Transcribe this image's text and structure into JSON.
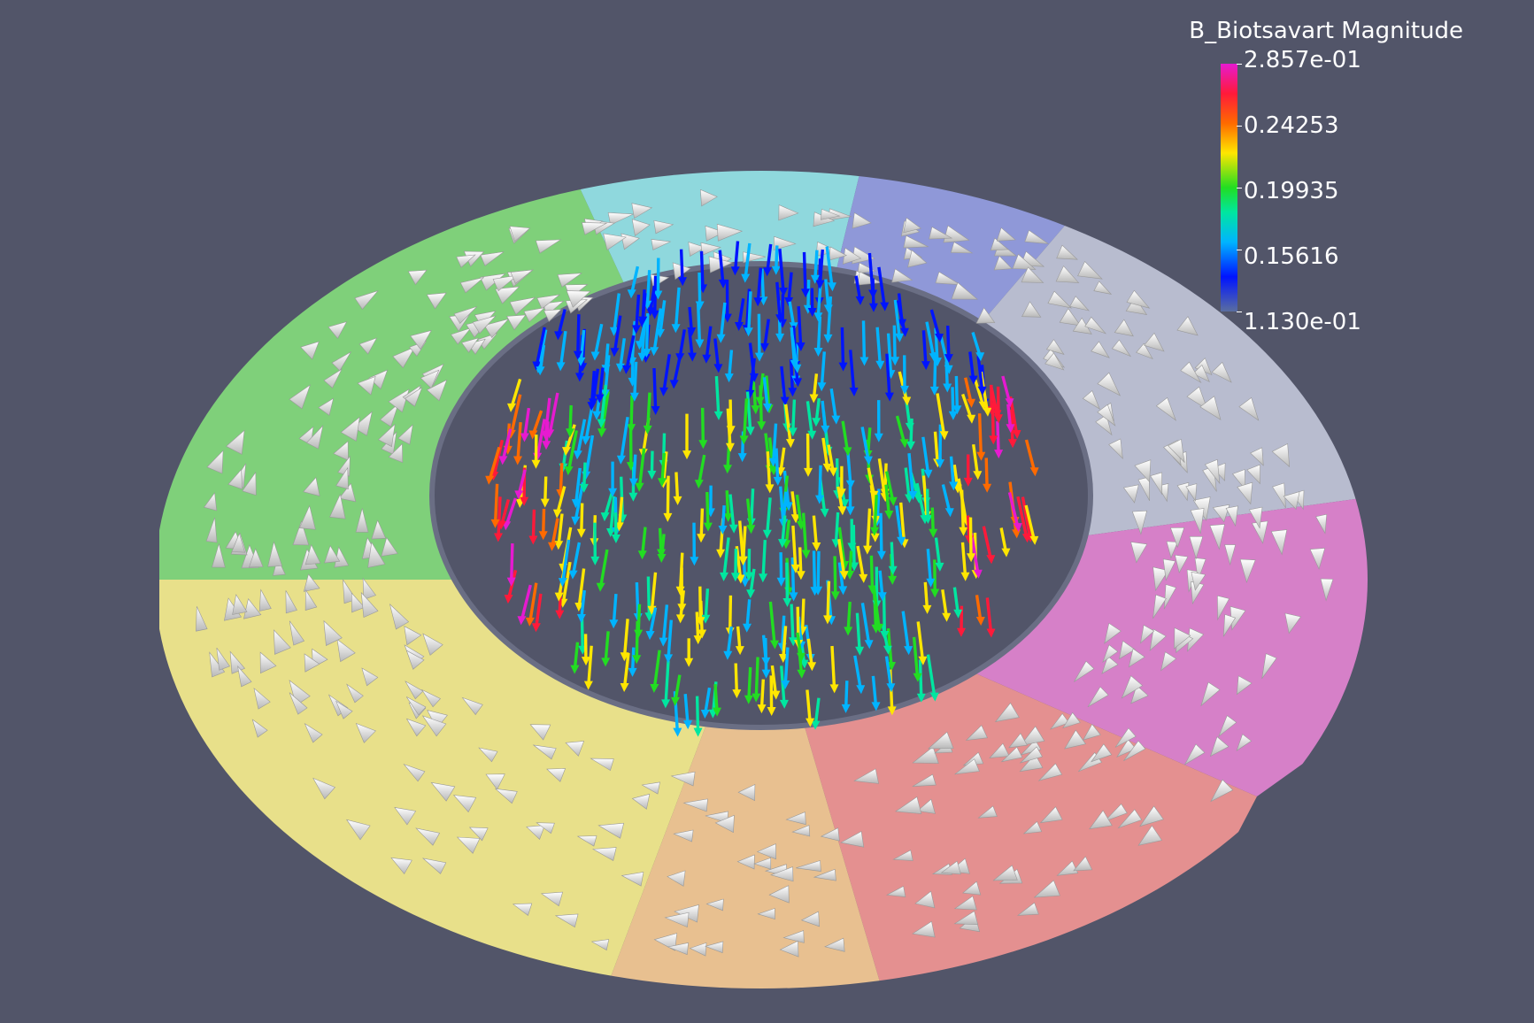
{
  "legend": {
    "title": "B_Biotsavart Magnitude",
    "labels": [
      "2.857e-01",
      "0.24253",
      "0.19935",
      "0.15616",
      "1.130e-01"
    ]
  },
  "colors": {
    "background": "#525569",
    "colormap": [
      "#e61ad0",
      "#ff1a3a",
      "#ff6a00",
      "#ffe600",
      "#22dd22",
      "#00e6a0",
      "#00b4ff",
      "#0014ff"
    ]
  }
}
